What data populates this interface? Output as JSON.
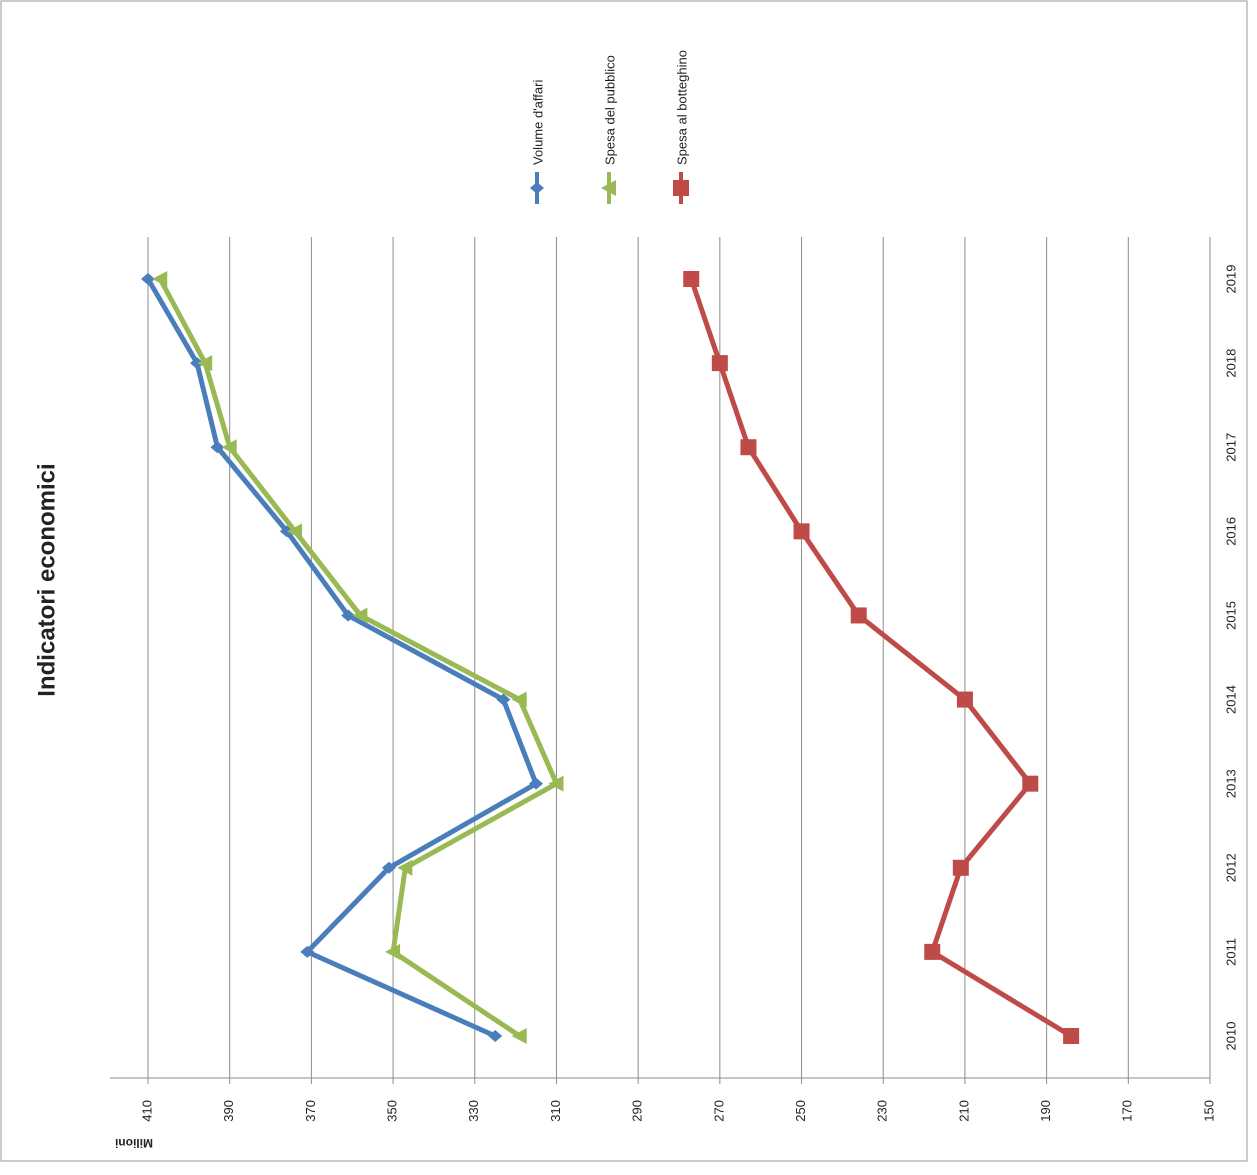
{
  "chart_data": {
    "type": "line",
    "title": "Indicatori economici",
    "y_label": "Milioni",
    "categories": [
      "2010",
      "2011",
      "2012",
      "2013",
      "2014",
      "2015",
      "2016",
      "2017",
      "2018",
      "2019"
    ],
    "series": [
      {
        "name": "Volume d'affari",
        "color": "#4a7ebb",
        "marker": "diamond",
        "values": [
          325,
          371,
          351,
          315,
          323,
          361,
          376,
          393,
          398,
          410
        ]
      },
      {
        "name": "Spesa del pubblico",
        "color": "#98b954",
        "marker": "triangle",
        "values": [
          319,
          350,
          347,
          310,
          319,
          358,
          374,
          390,
          396,
          407
        ]
      },
      {
        "name": "Spesa al botteghino",
        "color": "#be4b48",
        "marker": "square",
        "values": [
          184,
          218,
          211,
          194,
          210,
          236,
          250,
          263,
          270,
          277
        ]
      }
    ],
    "ylim": [
      150,
      410
    ],
    "yticks": [
      410,
      390,
      370,
      350,
      330,
      310,
      290,
      270,
      250,
      230,
      210,
      190,
      170,
      150
    ],
    "grid": true
  }
}
